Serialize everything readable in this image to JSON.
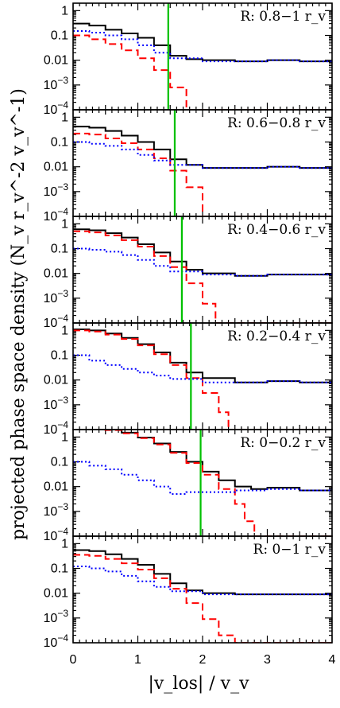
{
  "chart_data": {
    "type": "line",
    "xlabel": "|v_los| / v_v",
    "ylabel": "projected phase space density (N_v r_v^-2 v_v^-1)",
    "xlim": [
      0,
      4
    ],
    "ylim_log10": [
      -4,
      0.3
    ],
    "x_ticks": [
      "0",
      "1",
      "2",
      "3",
      "4"
    ],
    "y_ticks": [
      {
        "value": 1,
        "label": "1"
      },
      {
        "value": 0.1,
        "label": "0.1"
      },
      {
        "value": 0.01,
        "label": "0.01"
      },
      {
        "value": 0.001,
        "label": "10-3"
      },
      {
        "value": 0.0001,
        "label": "10-4"
      }
    ],
    "colors": {
      "total": "#000000",
      "halo": "#ff0000",
      "interloper": "#0000ff",
      "boundary": "#00c000"
    },
    "panels": [
      {
        "region_label": "R: 0.8−1 r_v",
        "vline": 1.47,
        "series": [
          {
            "key": "total",
            "style": "solid",
            "x": [
              0,
              0.25,
              0.5,
              0.75,
              1.0,
              1.25,
              1.5,
              1.75,
              2.0,
              2.5,
              3.0,
              3.5,
              4.0
            ],
            "y": [
              0.3,
              0.25,
              0.17,
              0.12,
              0.08,
              0.04,
              0.015,
              0.011,
              0.01,
              0.009,
              0.01,
              0.009,
              0.01
            ]
          },
          {
            "key": "halo",
            "style": "dashed",
            "x": [
              0,
              0.25,
              0.5,
              0.75,
              1.0,
              1.25,
              1.5,
              1.75
            ],
            "y": [
              0.1,
              0.07,
              0.045,
              0.025,
              0.012,
              0.004,
              0.0008,
              0.0001
            ]
          },
          {
            "key": "interloper",
            "style": "dotted",
            "x": [
              0,
              0.25,
              0.5,
              0.75,
              1.0,
              1.25,
              1.5,
              2.0,
              2.5,
              3.0,
              3.5,
              4.0
            ],
            "y": [
              0.15,
              0.13,
              0.1,
              0.07,
              0.04,
              0.02,
              0.012,
              0.009,
              0.009,
              0.01,
              0.009,
              0.009
            ]
          }
        ]
      },
      {
        "region_label": "R: 0.6−0.8 r_v",
        "vline": 1.57,
        "series": [
          {
            "key": "total",
            "style": "solid",
            "x": [
              0,
              0.25,
              0.5,
              0.75,
              1.0,
              1.25,
              1.5,
              1.75,
              2.0,
              2.5,
              3.0,
              3.5,
              4.0
            ],
            "y": [
              0.42,
              0.38,
              0.28,
              0.18,
              0.1,
              0.05,
              0.02,
              0.012,
              0.009,
              0.009,
              0.01,
              0.009,
              0.009
            ]
          },
          {
            "key": "halo",
            "style": "dashed",
            "x": [
              0,
              0.25,
              0.5,
              0.75,
              1.0,
              1.25,
              1.5,
              1.75,
              2.0
            ],
            "y": [
              0.22,
              0.2,
              0.14,
              0.09,
              0.05,
              0.022,
              0.007,
              0.0015,
              0.0001
            ]
          },
          {
            "key": "interloper",
            "style": "dotted",
            "x": [
              0,
              0.25,
              0.5,
              0.75,
              1.0,
              1.25,
              1.5,
              2.0,
              2.5,
              3.0,
              3.5,
              4.0
            ],
            "y": [
              0.1,
              0.085,
              0.07,
              0.05,
              0.03,
              0.018,
              0.012,
              0.009,
              0.009,
              0.01,
              0.009,
              0.009
            ]
          }
        ]
      },
      {
        "region_label": "R: 0.4−0.6 r_v",
        "vline": 1.68,
        "series": [
          {
            "key": "total",
            "style": "solid",
            "x": [
              0,
              0.25,
              0.5,
              0.75,
              1.0,
              1.25,
              1.5,
              1.75,
              2.0,
              2.5,
              3.0,
              3.5,
              4.0
            ],
            "y": [
              0.6,
              0.55,
              0.42,
              0.28,
              0.15,
              0.07,
              0.03,
              0.014,
              0.01,
              0.008,
              0.009,
              0.009,
              0.009
            ]
          },
          {
            "key": "halo",
            "style": "dashed",
            "x": [
              0,
              0.25,
              0.5,
              0.75,
              1.0,
              1.25,
              1.5,
              1.75,
              2.0,
              2.2
            ],
            "y": [
              0.5,
              0.45,
              0.34,
              0.22,
              0.12,
              0.05,
              0.018,
              0.004,
              0.0006,
              0.0001
            ]
          },
          {
            "key": "interloper",
            "style": "dotted",
            "x": [
              0,
              0.25,
              0.5,
              0.75,
              1.0,
              1.25,
              1.5,
              2.0,
              2.5,
              3.0,
              3.5,
              4.0
            ],
            "y": [
              0.1,
              0.09,
              0.075,
              0.055,
              0.035,
              0.02,
              0.012,
              0.009,
              0.008,
              0.009,
              0.009,
              0.009
            ]
          }
        ]
      },
      {
        "region_label": "R: 0.2−0.4 r_v",
        "vline": 1.82,
        "series": [
          {
            "key": "total",
            "style": "solid",
            "x": [
              0,
              0.25,
              0.5,
              0.75,
              1.0,
              1.25,
              1.5,
              1.75,
              2.0,
              2.5,
              3.0,
              3.5,
              4.0
            ],
            "y": [
              1.1,
              1.0,
              0.75,
              0.5,
              0.28,
              0.13,
              0.05,
              0.02,
              0.012,
              0.008,
              0.009,
              0.008,
              0.009
            ]
          },
          {
            "key": "halo",
            "style": "dashed",
            "x": [
              0,
              0.25,
              0.5,
              0.75,
              1.0,
              1.25,
              1.5,
              1.75,
              2.0,
              2.25,
              2.4
            ],
            "y": [
              1.0,
              0.9,
              0.68,
              0.45,
              0.25,
              0.11,
              0.04,
              0.012,
              0.003,
              0.0005,
              0.0001
            ]
          },
          {
            "key": "interloper",
            "style": "dotted",
            "x": [
              0,
              0.25,
              0.5,
              0.75,
              1.0,
              1.25,
              1.5,
              2.0,
              2.5,
              3.0,
              3.5,
              4.0
            ],
            "y": [
              0.1,
              0.06,
              0.04,
              0.028,
              0.02,
              0.015,
              0.011,
              0.008,
              0.008,
              0.009,
              0.008,
              0.009
            ]
          }
        ]
      },
      {
        "region_label": "R: 0−0.2 r_v",
        "vline": 1.97,
        "series": [
          {
            "key": "total",
            "style": "solid",
            "x": [
              0,
              0.25,
              0.5,
              0.75,
              1.0,
              1.25,
              1.5,
              1.75,
              2.0,
              2.25,
              2.5,
              2.75,
              3.0,
              3.5,
              4.0
            ],
            "y": [
              2.5,
              2.4,
              2.0,
              1.5,
              0.95,
              0.55,
              0.25,
              0.1,
              0.04,
              0.018,
              0.01,
              0.008,
              0.009,
              0.007,
              0.01
            ]
          },
          {
            "key": "halo",
            "style": "dashed",
            "x": [
              0,
              0.25,
              0.5,
              0.75,
              1.0,
              1.25,
              1.5,
              1.75,
              2.0,
              2.25,
              2.5,
              2.65,
              2.8
            ],
            "y": [
              2.4,
              2.3,
              1.9,
              1.4,
              0.9,
              0.5,
              0.23,
              0.09,
              0.03,
              0.008,
              0.002,
              0.0004,
              0.0001
            ]
          },
          {
            "key": "interloper",
            "style": "dotted",
            "x": [
              0,
              0.25,
              0.5,
              0.75,
              1.0,
              1.25,
              1.5,
              1.75,
              2.0,
              2.5,
              3.0,
              3.5,
              4.0
            ],
            "y": [
              0.1,
              0.07,
              0.05,
              0.03,
              0.018,
              0.01,
              0.005,
              0.006,
              0.006,
              0.007,
              0.008,
              0.007,
              0.009
            ]
          }
        ]
      },
      {
        "region_label": "R: 0−1 r_v",
        "vline": null,
        "series": [
          {
            "key": "total",
            "style": "solid",
            "x": [
              0,
              0.25,
              0.5,
              0.75,
              1.0,
              1.25,
              1.5,
              1.75,
              2.0,
              2.5,
              3.0,
              3.5,
              4.0
            ],
            "y": [
              0.55,
              0.5,
              0.37,
              0.24,
              0.14,
              0.06,
              0.025,
              0.013,
              0.01,
              0.009,
              0.009,
              0.009,
              0.009
            ]
          },
          {
            "key": "halo",
            "style": "dashed",
            "x": [
              0,
              0.25,
              0.5,
              0.75,
              1.0,
              1.25,
              1.5,
              1.75,
              2.0,
              2.25,
              2.5
            ],
            "y": [
              0.35,
              0.32,
              0.24,
              0.16,
              0.09,
              0.04,
              0.015,
              0.004,
              0.0009,
              0.0002,
              0.0001
            ]
          },
          {
            "key": "interloper",
            "style": "dotted",
            "x": [
              0,
              0.25,
              0.5,
              0.75,
              1.0,
              1.25,
              1.5,
              2.0,
              2.5,
              3.0,
              3.5,
              4.0
            ],
            "y": [
              0.12,
              0.1,
              0.075,
              0.05,
              0.03,
              0.018,
              0.012,
              0.009,
              0.009,
              0.009,
              0.009,
              0.009
            ]
          }
        ]
      }
    ]
  }
}
